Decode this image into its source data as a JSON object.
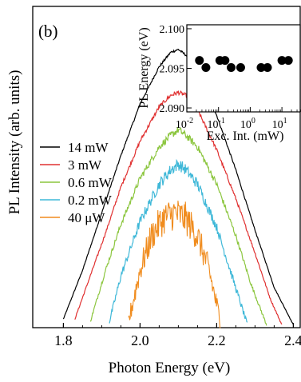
{
  "chart_data": [
    {
      "type": "line",
      "panel_label": "(b)",
      "xlabel": "Photon Energy (eV)",
      "ylabel": "PL Intensity (arb. units)",
      "xlim": [
        1.72,
        2.42
      ],
      "ylim": [
        0,
        1.12
      ],
      "xticks": [
        1.8,
        2.0,
        2.2,
        2.4
      ],
      "xtick_labels": [
        "1.8",
        "2.0",
        "2.2",
        "2.4"
      ],
      "legend_position": "left",
      "series": [
        {
          "name": "14 mW",
          "color": "#000000",
          "x": [
            1.8,
            1.85,
            1.9,
            1.95,
            2.0,
            2.05,
            2.08,
            2.1,
            2.12,
            2.15,
            2.2,
            2.25,
            2.3,
            2.35,
            2.4
          ],
          "y": [
            0.03,
            0.2,
            0.4,
            0.6,
            0.78,
            0.91,
            0.96,
            0.97,
            0.95,
            0.9,
            0.74,
            0.55,
            0.34,
            0.14,
            0.01
          ]
        },
        {
          "name": "3 mW",
          "color": "#e03030",
          "x": [
            1.83,
            1.87,
            1.91,
            1.95,
            2.0,
            2.05,
            2.08,
            2.1,
            2.12,
            2.15,
            2.2,
            2.25,
            2.3,
            2.34,
            2.37
          ],
          "y": [
            0.03,
            0.18,
            0.33,
            0.49,
            0.65,
            0.77,
            0.81,
            0.82,
            0.81,
            0.76,
            0.62,
            0.45,
            0.26,
            0.1,
            0.01
          ]
        },
        {
          "name": "0.6 mW",
          "color": "#8cc63f",
          "x": [
            1.87,
            1.91,
            1.95,
            2.0,
            2.05,
            2.08,
            2.1,
            2.12,
            2.15,
            2.2,
            2.25,
            2.29,
            2.33
          ],
          "y": [
            0.02,
            0.2,
            0.36,
            0.52,
            0.63,
            0.67,
            0.69,
            0.67,
            0.63,
            0.5,
            0.32,
            0.15,
            0.01
          ]
        },
        {
          "name": "0.2 mW",
          "color": "#3fb8d8",
          "x": [
            1.92,
            1.95,
            2.0,
            2.05,
            2.08,
            2.1,
            2.12,
            2.15,
            2.2,
            2.24,
            2.28
          ],
          "y": [
            0.02,
            0.18,
            0.37,
            0.5,
            0.55,
            0.57,
            0.55,
            0.5,
            0.35,
            0.18,
            0.01
          ]
        },
        {
          "name": "40 μW",
          "color": "#f08c1e",
          "x": [
            1.97,
            2.0,
            2.03,
            2.06,
            2.09,
            2.12,
            2.15,
            2.18,
            2.21
          ],
          "y": [
            0.02,
            0.2,
            0.32,
            0.38,
            0.4,
            0.38,
            0.32,
            0.2,
            0.02
          ]
        }
      ]
    },
    {
      "type": "scatter",
      "xlabel": "Exc. Int. (mW)",
      "ylabel": "PL Energy (eV)",
      "xscale": "log",
      "xlim": [
        0.01,
        40
      ],
      "ylim": [
        2.0895,
        2.1005
      ],
      "yticks": [
        2.09,
        2.095,
        2.1
      ],
      "ytick_labels": [
        "2.090",
        "2.095",
        "2.100"
      ],
      "xticks": [
        0.01,
        0.1,
        1,
        10
      ],
      "xtick_labels": [
        {
          "base": "10",
          "exp": "-2"
        },
        {
          "base": "10",
          "exp": "-1"
        },
        {
          "base": "10",
          "exp": "0"
        },
        {
          "base": "10",
          "exp": "1"
        }
      ],
      "series": [
        {
          "x": [
            0.025,
            0.04,
            0.11,
            0.16,
            0.25,
            0.5,
            2.2,
            3.5,
            10,
            16
          ],
          "y": [
            2.096,
            2.0951,
            2.096,
            2.096,
            2.0951,
            2.0951,
            2.0951,
            2.0951,
            2.096,
            2.096
          ]
        }
      ]
    }
  ]
}
